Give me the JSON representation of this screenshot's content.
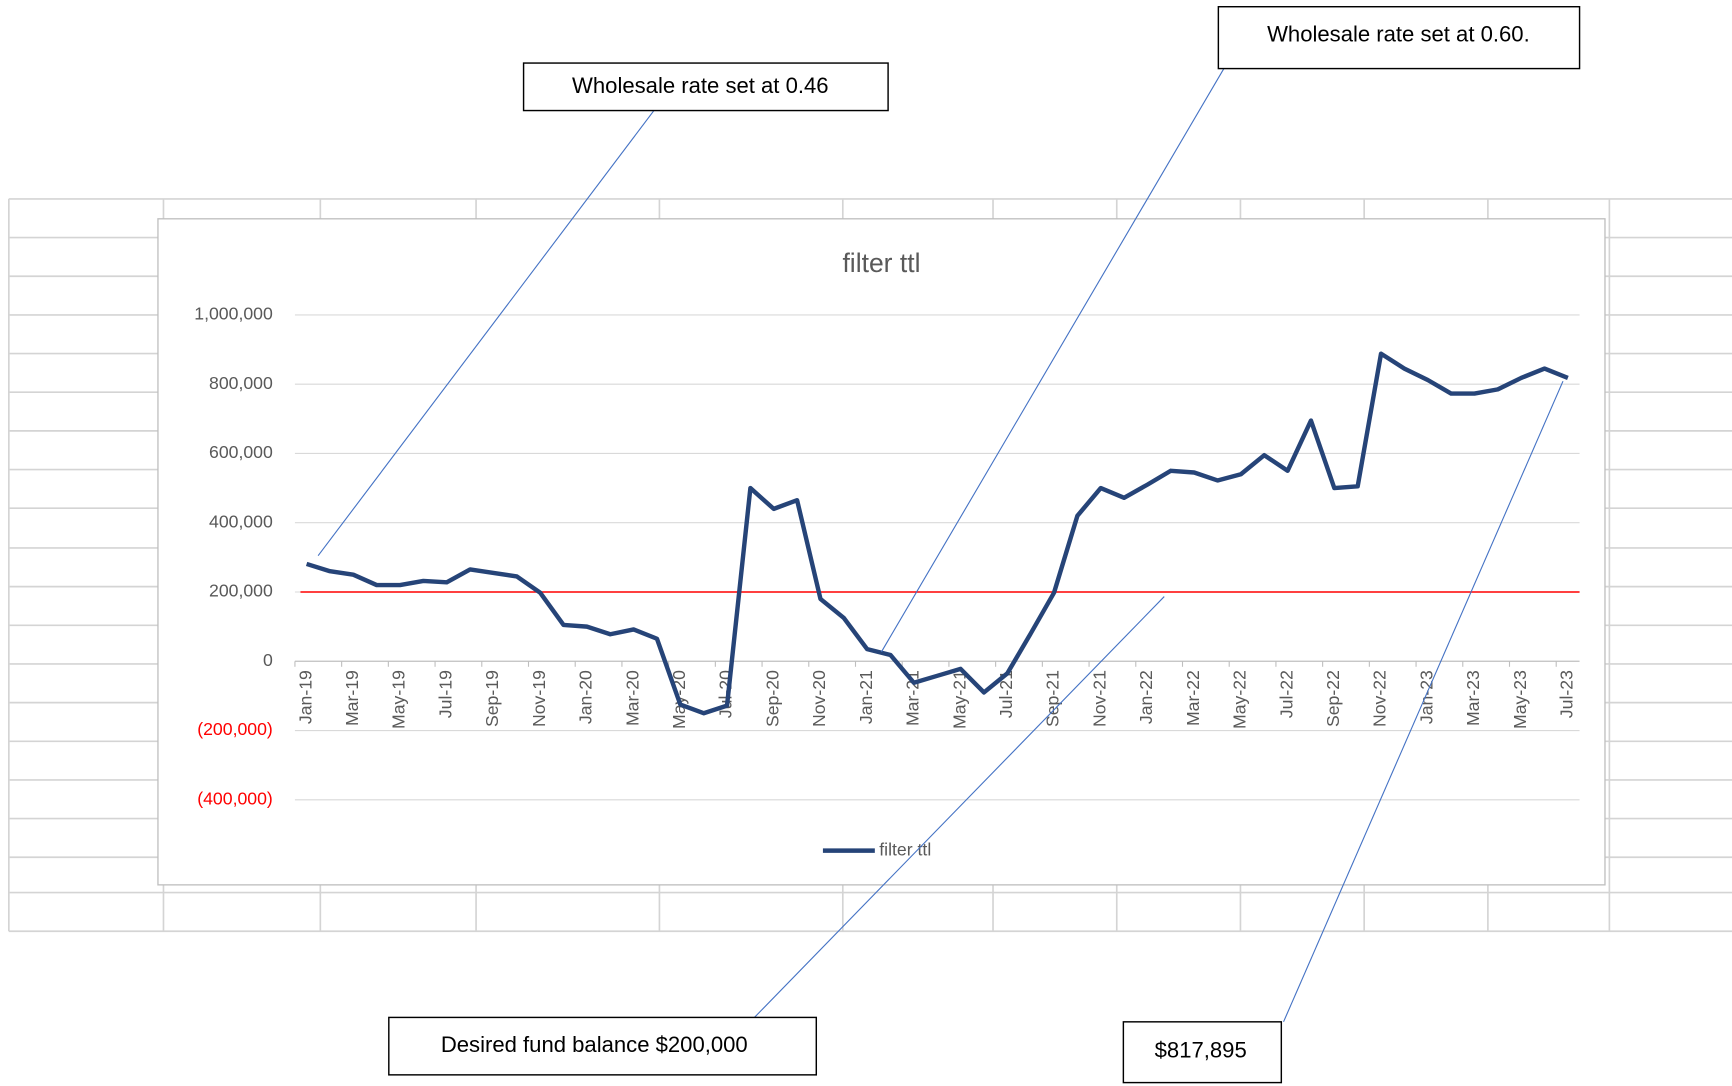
{
  "chart_data": {
    "type": "line",
    "title": "filter ttl",
    "categories": [
      "Jan-19",
      null,
      "Mar-19",
      null,
      "May-19",
      null,
      "Jul-19",
      null,
      "Sep-19",
      null,
      "Nov-19",
      null,
      "Jan-20",
      null,
      "Mar-20",
      null,
      "May-20",
      null,
      "Jul-20",
      null,
      "Sep-20",
      null,
      "Nov-20",
      null,
      "Jan-21",
      null,
      "Mar-21",
      null,
      "May-21",
      null,
      "Jul-21",
      null,
      "Sep-21",
      null,
      "Nov-21",
      null,
      "Jan-22",
      null,
      "Mar-22",
      null,
      "May-22",
      null,
      "Jul-22",
      null,
      "Sep-22",
      null,
      "Nov-22",
      null,
      "Jan-23",
      null,
      "Mar-23",
      null,
      "May-23",
      null,
      "Jul-23"
    ],
    "series": [
      {
        "name": "filter ttl",
        "color": "#264478",
        "values": [
          281000,
          260000,
          250000,
          220000,
          220000,
          232000,
          228000,
          265000,
          255000,
          245000,
          198000,
          105000,
          100000,
          78000,
          92000,
          65000,
          -125000,
          -150000,
          -128000,
          500000,
          440000,
          465000,
          180000,
          125000,
          35000,
          18000,
          -62000,
          -42000,
          -22000,
          -90000,
          -35000,
          80000,
          198000,
          420000,
          500000,
          472000,
          510000,
          550000,
          545000,
          522000,
          540000,
          595000,
          550000,
          695000,
          500000,
          505000,
          888000,
          845000,
          812000,
          773000,
          773000,
          785000,
          818000,
          845000,
          817895
        ]
      }
    ],
    "reference_line": {
      "value": 200000,
      "color": "#ff0000"
    },
    "ylim": [
      -400000,
      1000000
    ],
    "yticks": [
      {
        "value": -400000,
        "label": "(400,000)"
      },
      {
        "value": -200000,
        "label": "(200,000)"
      },
      0,
      {
        "value": 200000,
        "label": "200,000"
      },
      {
        "value": 400000,
        "label": "400,000"
      },
      {
        "value": 600000,
        "label": "600,000"
      },
      {
        "value": 800000,
        "label": "800,000"
      },
      {
        "value": 1000000,
        "label": "1,000,000"
      }
    ],
    "negative_tick_color": "#ff0000",
    "grid": true,
    "legend": "bottom",
    "annotations": [
      {
        "text": "Wholesale rate set at 0.46"
      },
      {
        "text": "Wholesale rate set at 0.60."
      },
      {
        "text": "Desired fund balance $200,000"
      },
      {
        "text": "$817,895"
      }
    ]
  }
}
